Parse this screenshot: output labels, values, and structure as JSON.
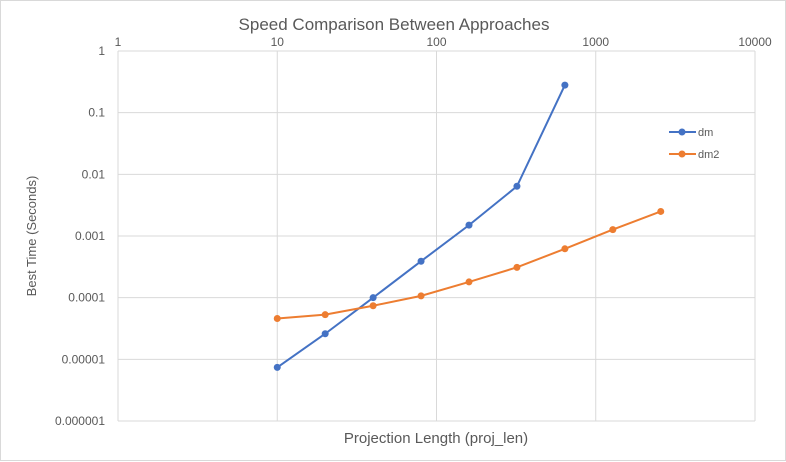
{
  "chart_data": {
    "type": "line",
    "title": "Speed Comparison Between Approaches",
    "xlabel": "Projection Length (proj_len)",
    "ylabel": "Best Time (Seconds)",
    "xscale": "log",
    "yscale": "log",
    "xlim": [
      1,
      10000
    ],
    "ylim": [
      1e-06,
      1
    ],
    "x_ticks": [
      "1",
      "10",
      "100",
      "1000",
      "10000"
    ],
    "y_ticks": [
      "1",
      "0.1",
      "0.01",
      "0.001",
      "0.0001",
      "0.00001",
      "0.000001"
    ],
    "grid": true,
    "legend_position": "right",
    "series": [
      {
        "name": "dm",
        "color": "#4472c4",
        "x": [
          10,
          20,
          40,
          80,
          160,
          320,
          640
        ],
        "values": [
          7.4e-06,
          2.6e-05,
          0.0001,
          0.00039,
          0.0015,
          0.0064,
          0.28
        ]
      },
      {
        "name": "dm2",
        "color": "#ed7d31",
        "x": [
          10,
          20,
          40,
          80,
          160,
          320,
          640,
          1280,
          2560
        ],
        "values": [
          4.6e-05,
          5.3e-05,
          7.4e-05,
          0.000107,
          0.00018,
          0.00031,
          0.00062,
          0.00127,
          0.0025
        ]
      }
    ]
  }
}
